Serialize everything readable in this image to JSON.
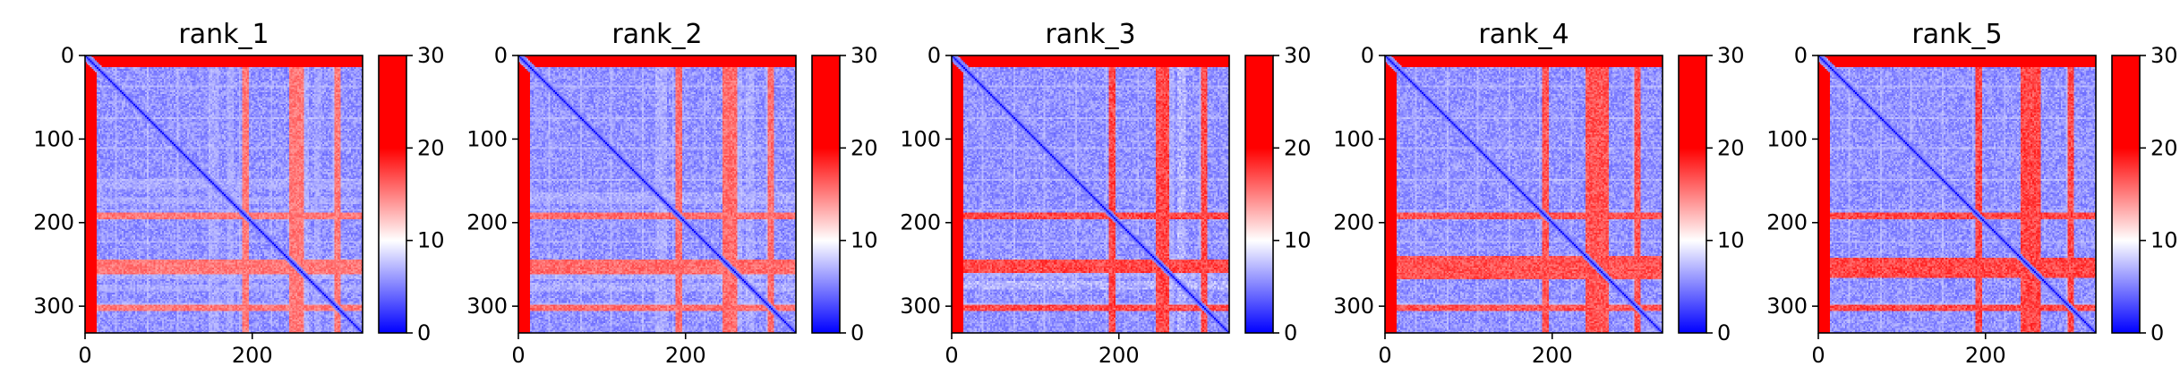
{
  "chart_data": [
    {
      "type": "heatmap",
      "title": "rank_1",
      "matrix_size": 332,
      "x_ticks": [
        0,
        200
      ],
      "y_ticks": [
        0,
        100,
        200,
        300
      ],
      "colorbar": {
        "min": 0,
        "max": 30,
        "ticks": [
          0,
          10,
          20,
          30
        ],
        "colors": [
          "#0000ff",
          "#ffffff",
          "#ff0000"
        ]
      },
      "xlim": [
        0,
        332
      ],
      "ylim": [
        332,
        0
      ],
      "high_rows": [
        [
          0,
          14
        ]
      ],
      "high_bands": [
        [
          188,
          196
        ],
        [
          245,
          262
        ],
        [
          298,
          306
        ]
      ],
      "mid_bands": [
        [
          150,
          160
        ],
        [
          170,
          178
        ],
        [
          275,
          282
        ]
      ],
      "band_strength": 0.55,
      "light_cols": [
        [
          250,
          268
        ]
      ],
      "high_cols": [
        [
          0,
          14
        ]
      ]
    },
    {
      "type": "heatmap",
      "title": "rank_2",
      "matrix_size": 332,
      "x_ticks": [
        0,
        200
      ],
      "y_ticks": [
        0,
        100,
        200,
        300
      ],
      "colorbar": {
        "min": 0,
        "max": 30,
        "ticks": [
          0,
          10,
          20,
          30
        ],
        "colors": [
          "#0000ff",
          "#ffffff",
          "#ff0000"
        ]
      },
      "xlim": [
        0,
        332
      ],
      "ylim": [
        332,
        0
      ],
      "high_rows": [
        [
          0,
          14
        ]
      ],
      "high_bands": [
        [
          188,
          196
        ],
        [
          245,
          262
        ],
        [
          298,
          306
        ]
      ],
      "mid_bands": [
        [
          165,
          178
        ],
        [
          272,
          282
        ]
      ],
      "band_strength": 0.6,
      "light_cols": [
        [
          250,
          268
        ]
      ],
      "high_cols": [
        [
          0,
          14
        ]
      ]
    },
    {
      "type": "heatmap",
      "title": "rank_3",
      "matrix_size": 332,
      "x_ticks": [
        0,
        200
      ],
      "y_ticks": [
        0,
        100,
        200,
        300
      ],
      "colorbar": {
        "min": 0,
        "max": 30,
        "ticks": [
          0,
          10,
          20,
          30
        ],
        "colors": [
          "#0000ff",
          "#ffffff",
          "#ff0000"
        ]
      },
      "xlim": [
        0,
        332
      ],
      "ylim": [
        332,
        0
      ],
      "high_rows": [
        [
          0,
          14
        ]
      ],
      "high_bands": [
        [
          188,
          196
        ],
        [
          245,
          260
        ],
        [
          298,
          306
        ]
      ],
      "mid_bands": [
        [
          270,
          280
        ]
      ],
      "band_strength": 0.75,
      "light_cols": [
        [
          250,
          265
        ]
      ],
      "high_cols": [
        [
          0,
          14
        ]
      ]
    },
    {
      "type": "heatmap",
      "title": "rank_4",
      "matrix_size": 332,
      "x_ticks": [
        0,
        200
      ],
      "y_ticks": [
        0,
        100,
        200,
        300
      ],
      "colorbar": {
        "min": 0,
        "max": 30,
        "ticks": [
          0,
          10,
          20,
          30
        ],
        "colors": [
          "#0000ff",
          "#ffffff",
          "#ff0000"
        ]
      },
      "xlim": [
        0,
        332
      ],
      "ylim": [
        332,
        0
      ],
      "high_rows": [
        [
          0,
          14
        ]
      ],
      "high_bands": [
        [
          188,
          196
        ],
        [
          240,
          268
        ],
        [
          298,
          306
        ]
      ],
      "mid_bands": [],
      "band_strength": 0.7,
      "light_cols": [
        [
          250,
          265
        ]
      ],
      "high_cols": [
        [
          0,
          14
        ]
      ]
    },
    {
      "type": "heatmap",
      "title": "rank_5",
      "matrix_size": 332,
      "x_ticks": [
        0,
        200
      ],
      "y_ticks": [
        0,
        100,
        200,
        300
      ],
      "colorbar": {
        "min": 0,
        "max": 30,
        "ticks": [
          0,
          10,
          20,
          30
        ],
        "colors": [
          "#0000ff",
          "#ffffff",
          "#ff0000"
        ]
      },
      "xlim": [
        0,
        332
      ],
      "ylim": [
        332,
        0
      ],
      "high_rows": [
        [
          0,
          14
        ]
      ],
      "high_bands": [
        [
          188,
          196
        ],
        [
          242,
          266
        ],
        [
          298,
          306
        ]
      ],
      "mid_bands": [],
      "band_strength": 0.75,
      "light_cols": [
        [
          250,
          265
        ]
      ],
      "high_cols": [
        [
          0,
          14
        ]
      ]
    }
  ]
}
